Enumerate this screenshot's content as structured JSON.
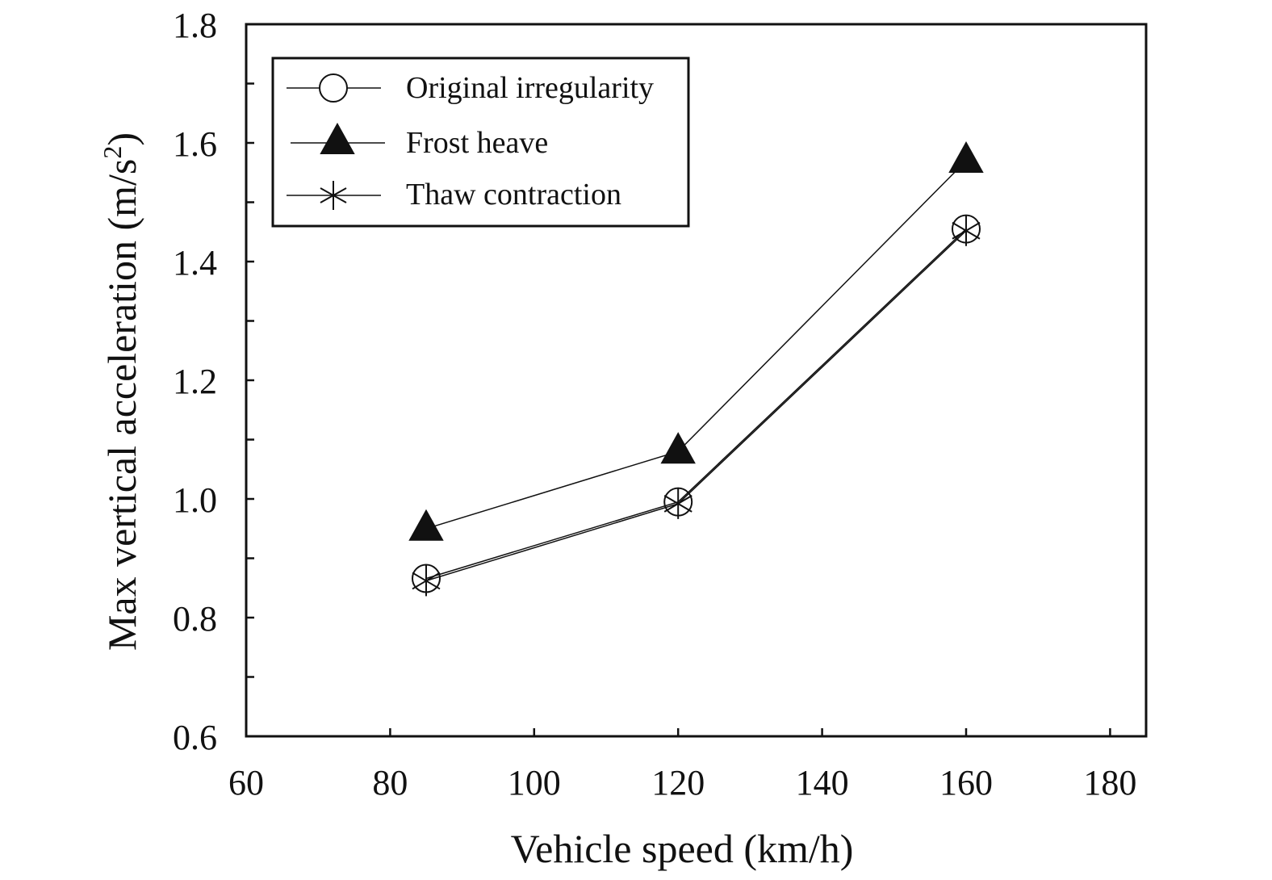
{
  "chart_data": {
    "type": "line",
    "title": "",
    "xlabel": "Vehicle speed (km/h)",
    "ylabel_main": "Max vertical acceleration (m/s",
    "ylabel_sup": "2",
    "ylabel_tail": ")",
    "xlim": [
      60,
      185
    ],
    "ylim": [
      0.6,
      1.8
    ],
    "x_ticks": [
      60,
      80,
      100,
      120,
      140,
      160,
      180
    ],
    "x_tick_labels": [
      "60",
      "80",
      "100",
      "120",
      "140",
      "160",
      "180"
    ],
    "y_ticks": [
      0.6,
      0.8,
      1.0,
      1.2,
      1.4,
      1.6,
      1.8
    ],
    "y_tick_labels": [
      "0.6",
      "0.8",
      "1.0",
      "1.2",
      "1.4",
      "1.6",
      "1.8"
    ],
    "y_minor_step": 0.1,
    "x_minor_step": 20,
    "grid": false,
    "legend_position": "top-left",
    "x": [
      85,
      120,
      160
    ],
    "series": [
      {
        "name": "Original irregularity",
        "marker": "circle",
        "values": [
          0.866,
          0.995,
          1.455
        ]
      },
      {
        "name": "Frost heave",
        "marker": "triangle",
        "values": [
          0.95,
          1.08,
          1.57
        ]
      },
      {
        "name": "Thaw contraction",
        "marker": "asterisk",
        "values": [
          0.862,
          0.992,
          1.452
        ]
      }
    ],
    "line_color": "#111111"
  }
}
